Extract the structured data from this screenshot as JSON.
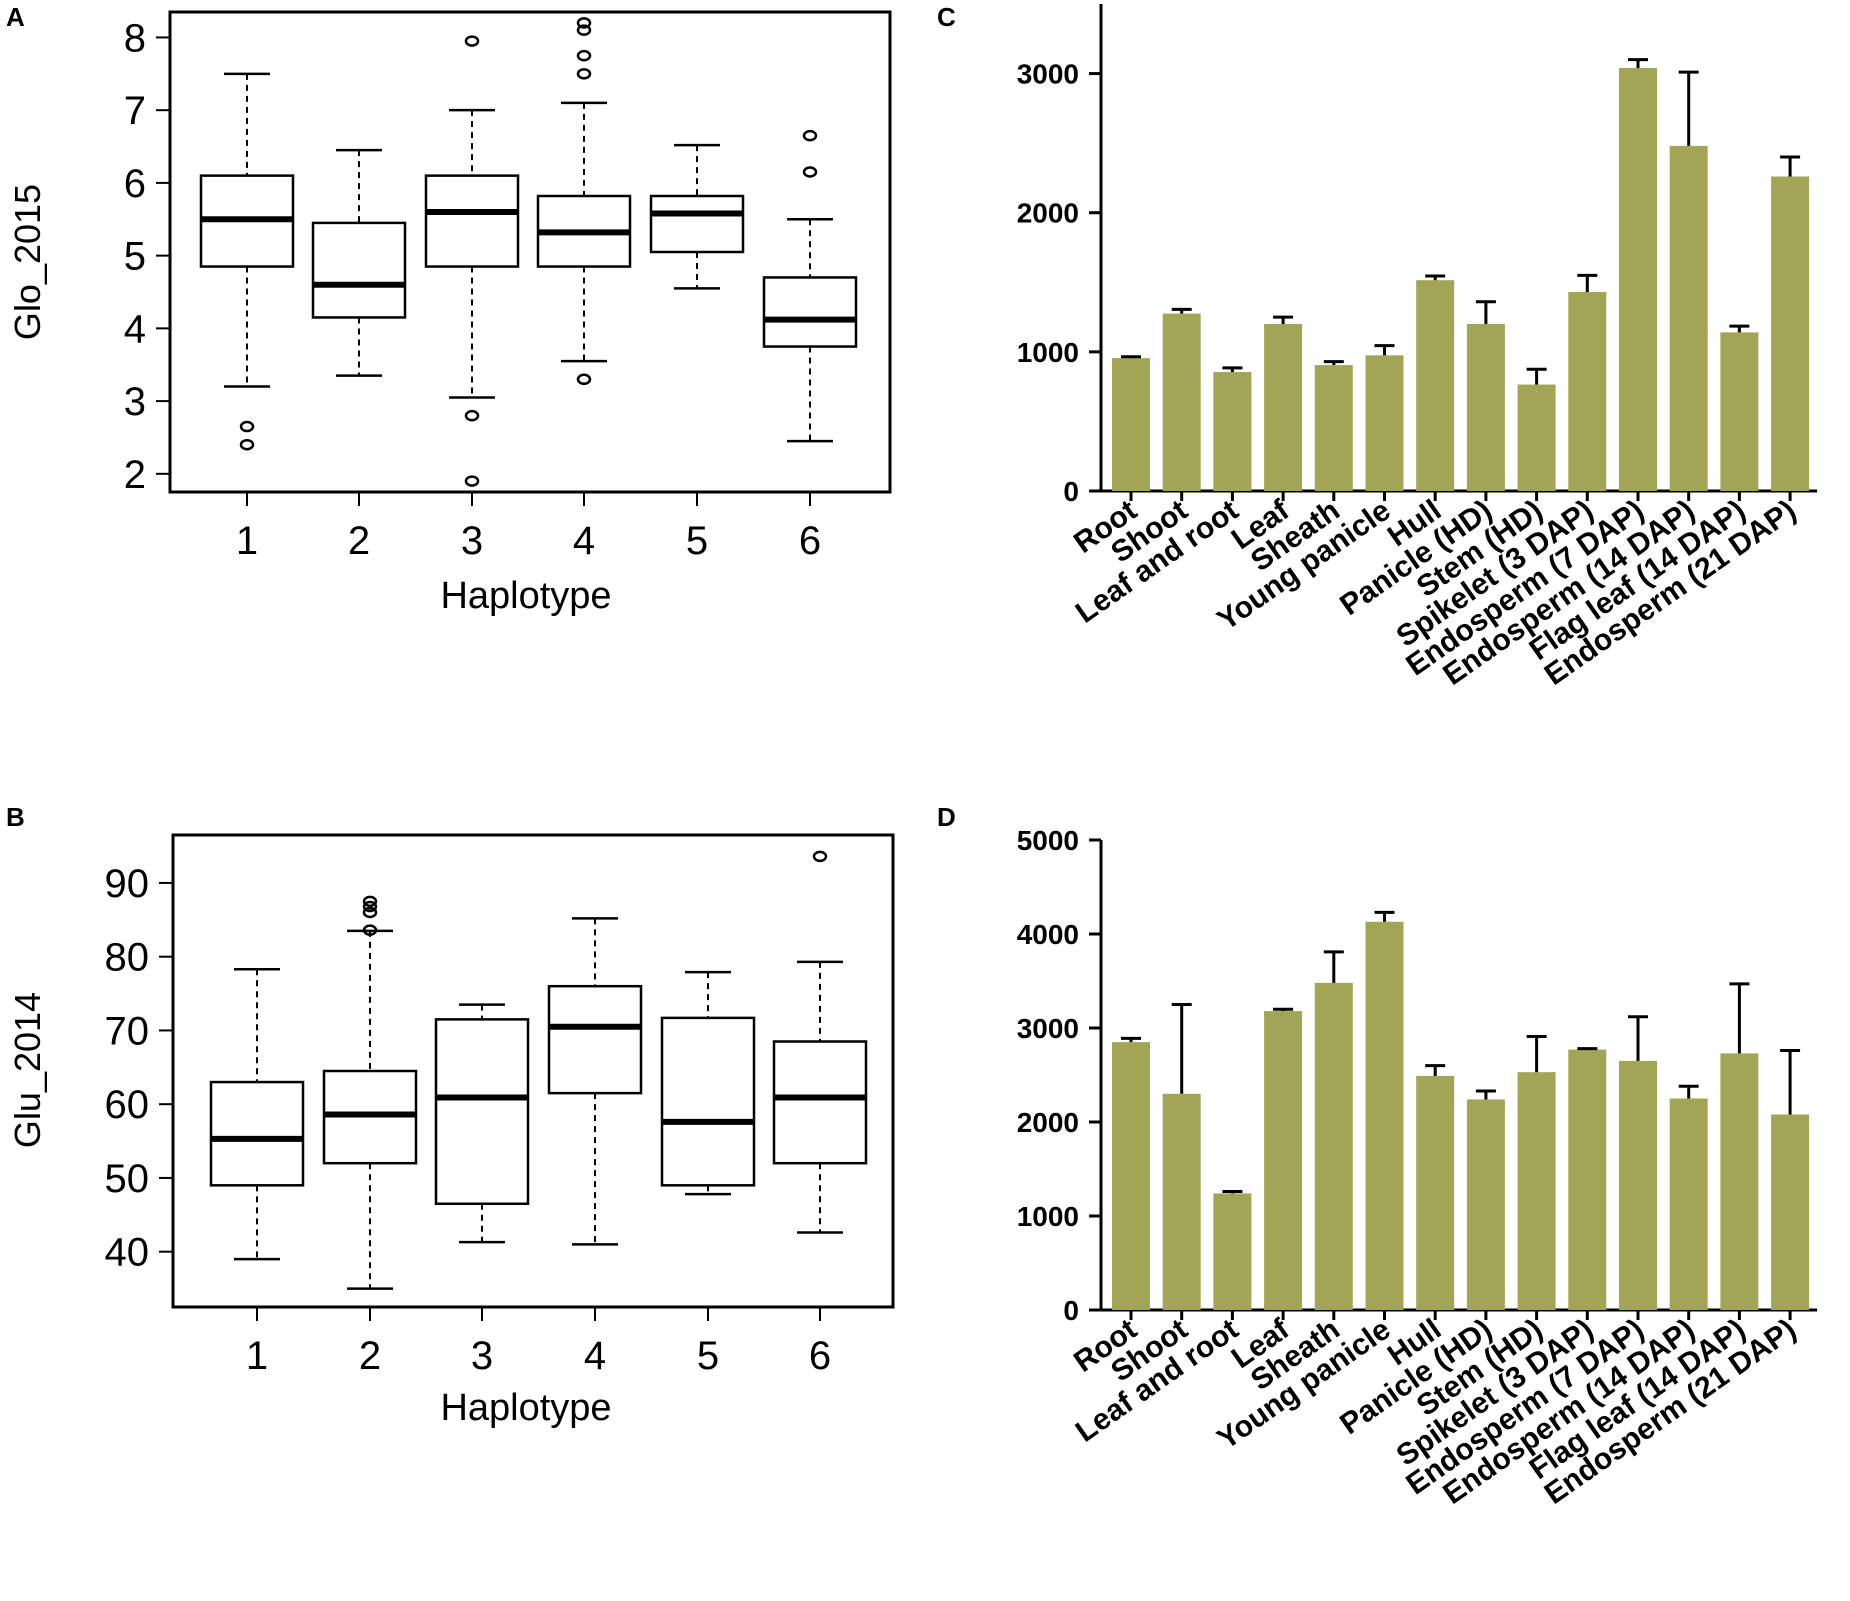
{
  "chart_data": [
    {
      "panel": "A",
      "type": "box",
      "xlabel": "Haplotype",
      "ylabel": "Glo_2015",
      "ylim": [
        1.75,
        8.35
      ],
      "yticks": [
        2,
        3,
        4,
        5,
        6,
        7,
        8
      ],
      "categories": [
        "1",
        "2",
        "3",
        "4",
        "5",
        "6"
      ],
      "boxes": [
        {
          "whisker_low": 3.2,
          "q1": 4.85,
          "median": 5.5,
          "q3": 6.1,
          "whisker_high": 7.5,
          "outliers": [
            2.65,
            2.4
          ]
        },
        {
          "whisker_low": 3.35,
          "q1": 4.15,
          "median": 4.6,
          "q3": 5.45,
          "whisker_high": 6.45,
          "outliers": []
        },
        {
          "whisker_low": 3.05,
          "q1": 4.85,
          "median": 5.6,
          "q3": 6.1,
          "whisker_high": 7.0,
          "outliers": [
            7.95,
            2.8,
            1.9
          ]
        },
        {
          "whisker_low": 3.55,
          "q1": 4.85,
          "median": 5.32,
          "q3": 5.82,
          "whisker_high": 7.1,
          "outliers": [
            8.2,
            8.1,
            7.75,
            7.5,
            3.3
          ]
        },
        {
          "whisker_low": 4.55,
          "q1": 5.05,
          "median": 5.58,
          "q3": 5.82,
          "whisker_high": 6.52,
          "outliers": []
        },
        {
          "whisker_low": 2.45,
          "q1": 3.75,
          "median": 4.12,
          "q3": 4.7,
          "whisker_high": 5.5,
          "outliers": [
            6.65,
            6.15
          ]
        }
      ]
    },
    {
      "panel": "B",
      "type": "box",
      "xlabel": "Haplotype",
      "ylabel": "Glu_2014",
      "ylim": [
        32.5,
        96.5
      ],
      "yticks": [
        40,
        50,
        60,
        70,
        80,
        90
      ],
      "categories": [
        "1",
        "2",
        "3",
        "4",
        "5",
        "6"
      ],
      "boxes": [
        {
          "whisker_low": 39.0,
          "q1": 49.0,
          "median": 55.3,
          "q3": 63.0,
          "whisker_high": 78.3,
          "outliers": []
        },
        {
          "whisker_low": 35.0,
          "q1": 52.0,
          "median": 58.6,
          "q3": 64.5,
          "whisker_high": 83.5,
          "outliers": [
            87.5,
            86.8,
            86.0,
            83.6
          ]
        },
        {
          "whisker_low": 41.3,
          "q1": 46.5,
          "median": 60.9,
          "q3": 71.5,
          "whisker_high": 73.5,
          "outliers": []
        },
        {
          "whisker_low": 41.0,
          "q1": 61.5,
          "median": 70.5,
          "q3": 76.0,
          "whisker_high": 85.2,
          "outliers": []
        },
        {
          "whisker_low": 47.8,
          "q1": 49.0,
          "median": 57.6,
          "q3": 71.7,
          "whisker_high": 77.9,
          "outliers": []
        },
        {
          "whisker_low": 42.6,
          "q1": 52.0,
          "median": 60.9,
          "q3": 68.5,
          "whisker_high": 79.3,
          "outliers": [
            93.6
          ]
        }
      ]
    },
    {
      "panel": "C",
      "type": "bar",
      "ylim": [
        0,
        3500
      ],
      "yticks": [
        0,
        1000,
        2000,
        3000
      ],
      "categories": [
        "Root",
        "Shoot",
        "Leaf and root",
        "Leaf",
        "Sheath",
        "Young panicle",
        "Hull",
        "Panicle (HD)",
        "Stem (HD)",
        "Spikelet (3 DAP)",
        "Endosperm (7 DAP)",
        "Endosperm (14 DAP)",
        "Flag leaf (14 DAP)",
        "Endosperm (21 DAP)"
      ],
      "values": [
        955,
        1275,
        855,
        1200,
        905,
        975,
        1515,
        1200,
        765,
        1430,
        3040,
        2480,
        1140,
        2260
      ],
      "errors": [
        10,
        30,
        30,
        50,
        25,
        70,
        30,
        160,
        110,
        120,
        60,
        530,
        45,
        140
      ]
    },
    {
      "panel": "D",
      "type": "bar",
      "ylim": [
        0,
        5000
      ],
      "yticks": [
        0,
        1000,
        2000,
        3000,
        4000,
        5000
      ],
      "categories": [
        "Root",
        "Shoot",
        "Leaf and root",
        "Leaf",
        "Sheath",
        "Young panicle",
        "Hull",
        "Panicle (HD)",
        "Stem (HD)",
        "Spikelet (3 DAP)",
        "Endosperm (7 DAP)",
        "Endosperm (14 DAP)",
        "Flag leaf (14 DAP)",
        "Endosperm (21 DAP)"
      ],
      "values": [
        2850,
        2300,
        1240,
        3180,
        3480,
        4130,
        2490,
        2240,
        2530,
        2770,
        2650,
        2250,
        2730,
        2080
      ],
      "errors": [
        40,
        950,
        20,
        20,
        330,
        100,
        110,
        90,
        380,
        10,
        470,
        130,
        740,
        680
      ]
    }
  ]
}
